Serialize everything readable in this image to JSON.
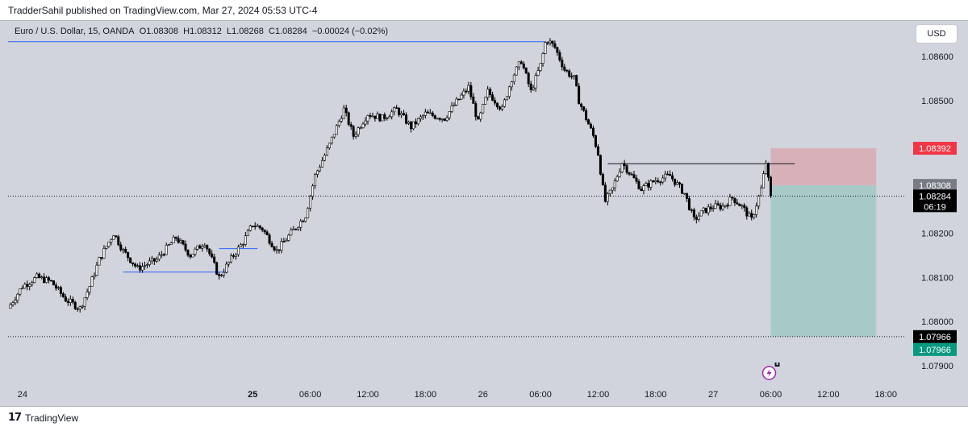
{
  "header": {
    "published": "TradderSahil published on TradingView.com, Mar 27, 2024 05:53 UTC-4"
  },
  "legend": {
    "symbol": "Euro / U.S. Dollar, 15, OANDA",
    "open_label": "O",
    "open": "1.08308",
    "high_label": "H",
    "high": "1.08312",
    "low_label": "L",
    "low": "1.08268",
    "close_label": "C",
    "close": "1.08284",
    "change": "−0.00024 (−0.02%)"
  },
  "currency_button": "USD",
  "footer": {
    "brand": "TradingView"
  },
  "price_labels": {
    "stop": "1.08392",
    "entry": "1.08308",
    "last": "1.08284",
    "countdown": "06:19",
    "target_1": "1.07966",
    "target_2": "1.07966"
  },
  "colors": {
    "background": "#d1d4dc",
    "up": "#26a69a",
    "candle_body_up": "#ffffff",
    "candle_wick": "#000000",
    "stop_zone": "#d8b1b8",
    "target_zone": "#a7cac9",
    "stop_tag": "#f23645",
    "entry_tag": "#787b86",
    "last_tag": "#000000",
    "target_tag": "#089981",
    "level_line": "#2962ff"
  },
  "chart_data": {
    "type": "candlestick",
    "symbol": "EUR/USD",
    "timeframe": "15",
    "y_ticks": [
      "1.08600",
      "1.08500",
      "1.08200",
      "1.08100",
      "1.08000",
      "1.07900"
    ],
    "ylim": [
      1.0786,
      1.0868
    ],
    "x_ticks": [
      "24",
      "25",
      "06:00",
      "12:00",
      "18:00",
      "26",
      "06:00",
      "12:00",
      "18:00",
      "27",
      "06:00",
      "12:00",
      "18:00"
    ],
    "x_tick_hours": [
      0,
      24,
      30,
      36,
      42,
      48,
      54,
      60,
      66,
      72,
      78,
      84,
      90
    ],
    "xlim": [
      -1.5,
      92
    ],
    "close_path": [
      [
        -1.5,
        1.0803
      ],
      [
        0,
        1.0808
      ],
      [
        1.5,
        1.081
      ],
      [
        3,
        1.0809
      ],
      [
        4.5,
        1.0805
      ],
      [
        6,
        1.0803
      ],
      [
        7,
        1.0808
      ],
      [
        8,
        1.0814
      ],
      [
        9.5,
        1.082
      ],
      [
        10.5,
        1.0816
      ],
      [
        12,
        1.0812
      ],
      [
        14,
        1.0814
      ],
      [
        16,
        1.0819
      ],
      [
        17.5,
        1.0815
      ],
      [
        19,
        1.0818
      ],
      [
        20.5,
        1.081
      ],
      [
        22,
        1.0815
      ],
      [
        23,
        1.0818
      ],
      [
        24,
        1.0822
      ],
      [
        25,
        1.0821
      ],
      [
        26.5,
        1.0816
      ],
      [
        28,
        1.082
      ],
      [
        29.5,
        1.0824
      ],
      [
        30.5,
        1.0833
      ],
      [
        32,
        1.084
      ],
      [
        33.5,
        1.0848
      ],
      [
        34.5,
        1.0842
      ],
      [
        36,
        1.0847
      ],
      [
        37.5,
        1.0846
      ],
      [
        39,
        1.0848
      ],
      [
        40.5,
        1.0844
      ],
      [
        42,
        1.0847
      ],
      [
        44,
        1.0846
      ],
      [
        45,
        1.0849
      ],
      [
        46.5,
        1.0853
      ],
      [
        47.5,
        1.0845
      ],
      [
        48.5,
        1.0852
      ],
      [
        50,
        1.0848
      ],
      [
        51,
        1.0855
      ],
      [
        52,
        1.0859
      ],
      [
        53,
        1.0852
      ],
      [
        54,
        1.0858
      ],
      [
        54.6,
        1.0864
      ],
      [
        55.5,
        1.0862
      ],
      [
        56.5,
        1.0857
      ],
      [
        57.5,
        1.0855
      ],
      [
        58,
        1.085
      ],
      [
        59.5,
        1.0842
      ],
      [
        60,
        1.0838
      ],
      [
        60.7,
        1.0827
      ],
      [
        61.5,
        1.083
      ],
      [
        62.5,
        1.0836
      ],
      [
        63.5,
        1.0833
      ],
      [
        64.5,
        1.083
      ],
      [
        66,
        1.0832
      ],
      [
        67.5,
        1.0833
      ],
      [
        69,
        1.0829
      ],
      [
        70,
        1.0823
      ],
      [
        71,
        1.0825
      ],
      [
        72,
        1.0826
      ],
      [
        73,
        1.0826
      ],
      [
        74,
        1.0828
      ],
      [
        75,
        1.0826
      ],
      [
        76,
        1.0823
      ],
      [
        77,
        1.083
      ],
      [
        77.5,
        1.0836
      ],
      [
        78,
        1.0828
      ]
    ],
    "levels": [
      {
        "kind": "resistance",
        "value": 1.08633,
        "x_from": -1.5,
        "x_to": 54.5
      },
      {
        "kind": "support",
        "value": 1.08112,
        "x_from": 10.5,
        "x_to": 21.5
      },
      {
        "kind": "support",
        "value": 1.08165,
        "x_from": 20.5,
        "x_to": 24.5
      },
      {
        "kind": "range_high",
        "value": 1.08357,
        "x_from": 61,
        "x_to": 80.5
      }
    ],
    "position": {
      "side": "short",
      "x_from": 78,
      "x_to": 89,
      "stop": 1.08392,
      "entry": 1.08308,
      "target": 1.07966
    },
    "last_price": 1.08284
  }
}
